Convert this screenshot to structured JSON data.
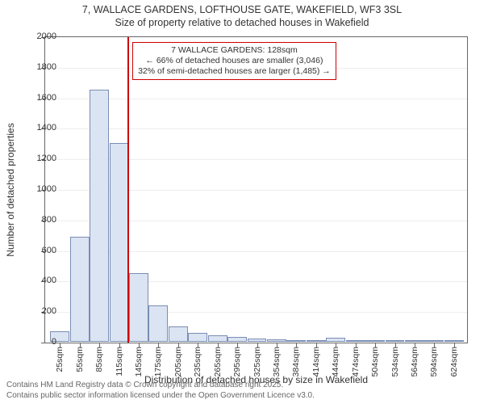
{
  "title_line1": "7, WALLACE GARDENS, LOFTHOUSE GATE, WAKEFIELD, WF3 3SL",
  "title_line2": "Size of property relative to detached houses in Wakefield",
  "yaxis_title": "Number of detached properties",
  "xaxis_title": "Distribution of detached houses by size in Wakefield",
  "footer_line1": "Contains HM Land Registry data © Crown copyright and database right 2025.",
  "footer_line2": "Contains public sector information licensed under the Open Government Licence v3.0.",
  "annotation": {
    "line1": "7 WALLACE GARDENS: 128sqm",
    "line2": "← 66% of detached houses are smaller (3,046)",
    "line3": "32% of semi-detached houses are larger (1,485) →"
  },
  "chart": {
    "type": "histogram",
    "ylim": [
      0,
      2000
    ],
    "ytick_step": 200,
    "bar_fill": "#dbe4f3",
    "bar_stroke": "#7a8db3",
    "marker_color": "#cc0000",
    "marker_x": 128,
    "x_categories": [
      "25sqm",
      "55sqm",
      "85sqm",
      "115sqm",
      "145sqm",
      "175sqm",
      "205sqm",
      "235sqm",
      "265sqm",
      "295sqm",
      "325sqm",
      "354sqm",
      "384sqm",
      "414sqm",
      "444sqm",
      "474sqm",
      "504sqm",
      "534sqm",
      "564sqm",
      "594sqm",
      "624sqm"
    ],
    "x_bin_start": 10,
    "x_bin_width": 30,
    "values": [
      70,
      690,
      1650,
      1300,
      450,
      240,
      100,
      60,
      40,
      30,
      20,
      15,
      12,
      10,
      25,
      8,
      6,
      5,
      4,
      3,
      2
    ],
    "background_color": "#ffffff",
    "grid_color": "#eeeeee",
    "axis_color": "#666666",
    "title_fontsize": 12.5,
    "label_fontsize": 12,
    "tick_fontsize": 11
  }
}
